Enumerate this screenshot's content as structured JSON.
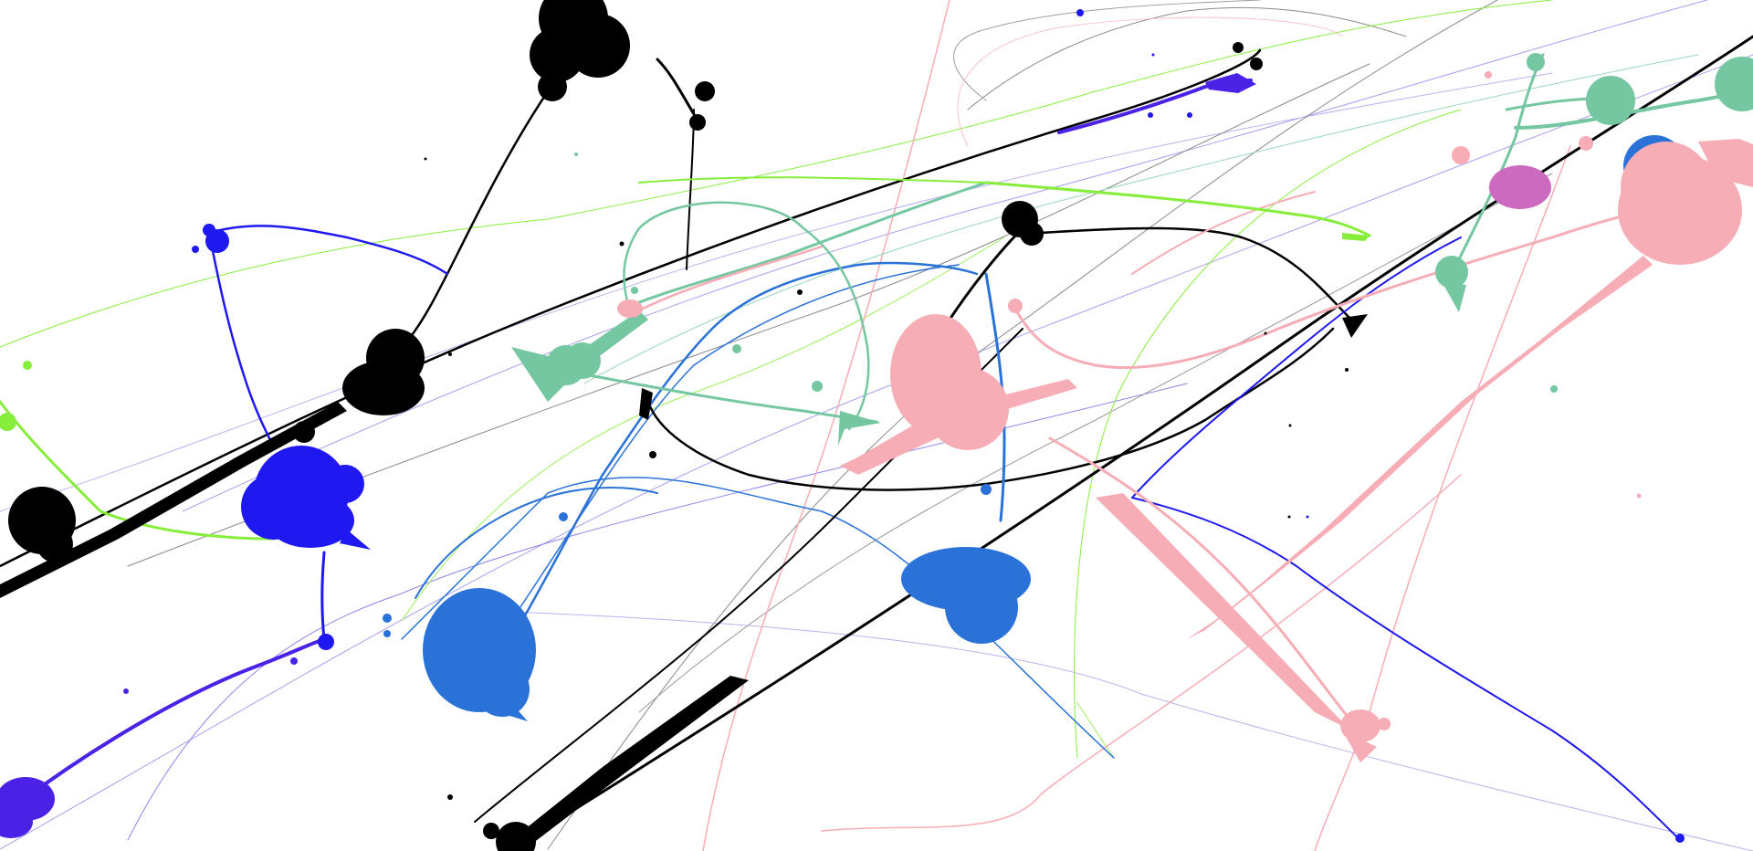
{
  "artwork": {
    "style": "drip-painting",
    "background": "#ffffff",
    "palette": {
      "black": "#000000",
      "royal_blue": "#1f18f0",
      "cobalt": "#2a72d8",
      "violet_blue": "#4a22e6",
      "seafoam": "#74c7a0",
      "pink": "#f7adb5",
      "lime": "#86ee3a",
      "magenta": "#cc6ac0",
      "thin_grey": "#8a8a8a",
      "lavender": "#a7a0ee"
    }
  }
}
